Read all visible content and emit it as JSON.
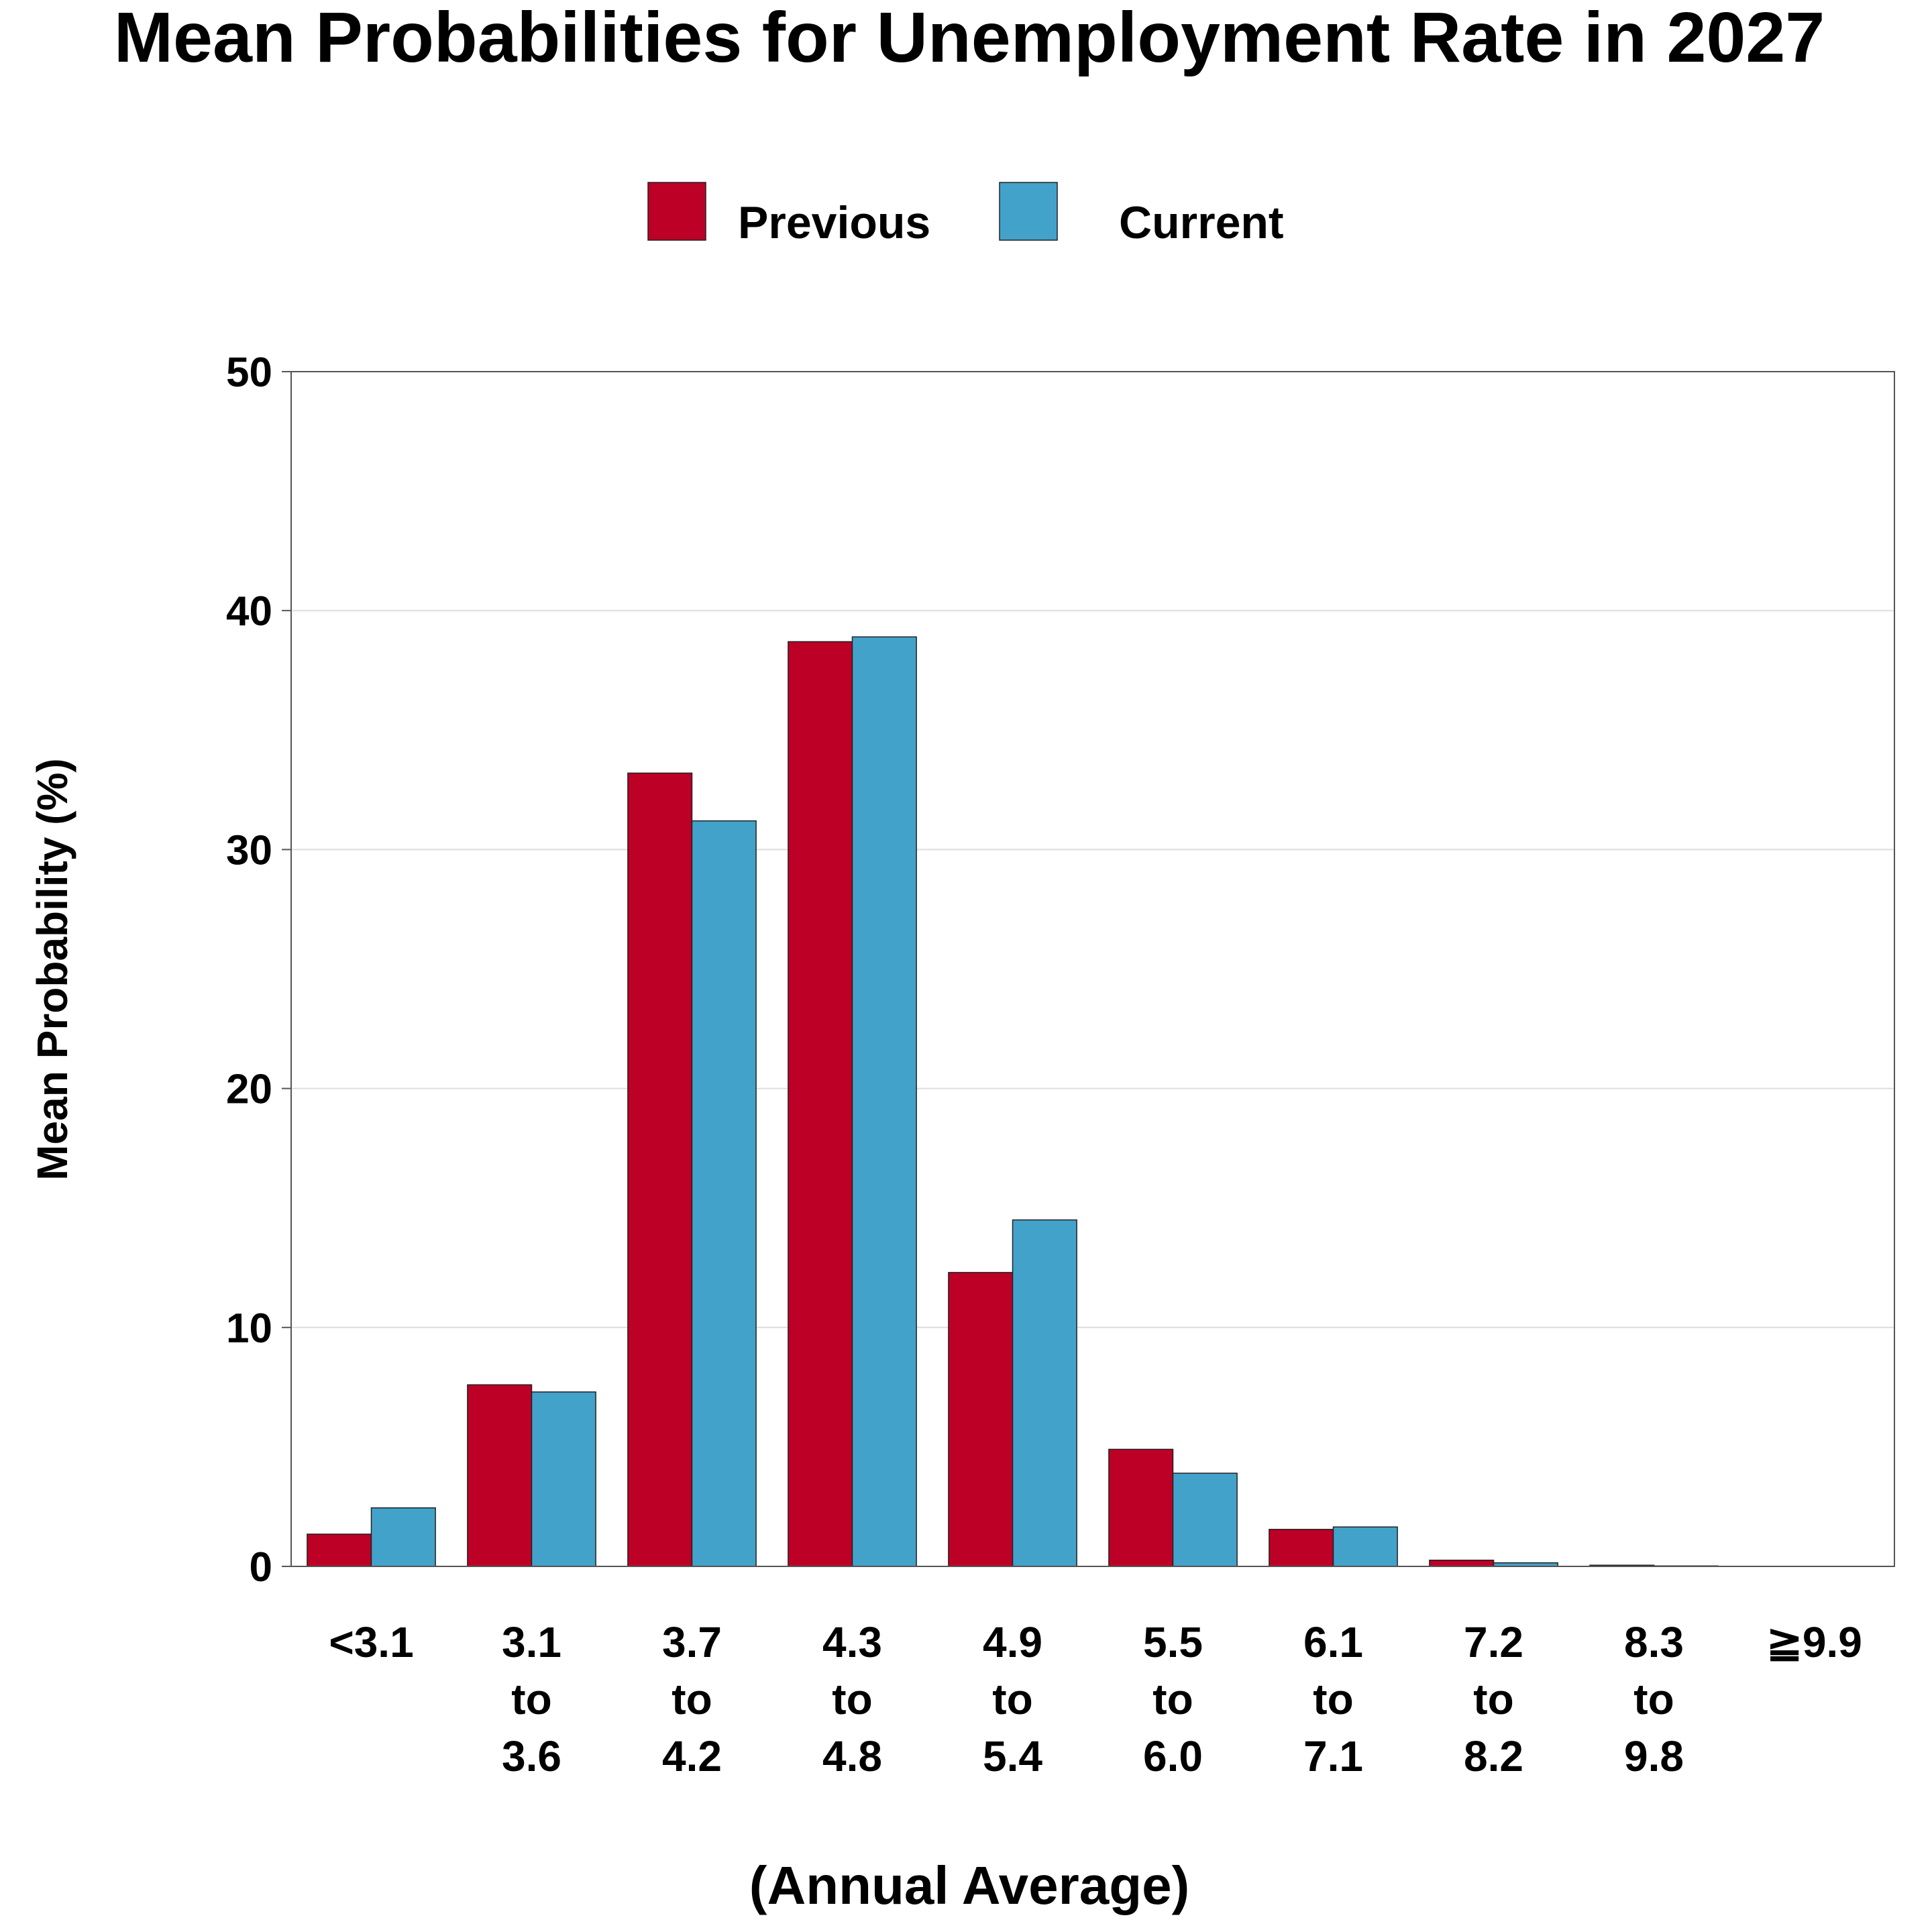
{
  "chart_data": {
    "type": "bar",
    "title": "Mean Probabilities for Unemployment Rate in 2027",
    "xlabel": "(Annual Average)",
    "ylabel": "Mean Probability (%)",
    "ylim": [
      0,
      50
    ],
    "yticks": [
      0,
      10,
      20,
      30,
      40,
      50
    ],
    "grid": true,
    "legend_position": "top-center",
    "categories": [
      [
        "<3.1"
      ],
      [
        "3.1",
        "to",
        "3.6"
      ],
      [
        "3.7",
        "to",
        "4.2"
      ],
      [
        "4.3",
        "to",
        "4.8"
      ],
      [
        "4.9",
        "to",
        "5.4"
      ],
      [
        "5.5",
        "to",
        "6.0"
      ],
      [
        "6.1",
        "to",
        "7.1"
      ],
      [
        "7.2",
        "to",
        "8.2"
      ],
      [
        "8.3",
        "to",
        "9.8"
      ],
      [
        "≧9.9"
      ]
    ],
    "series": [
      {
        "name": "Previous",
        "color": "#BD0026",
        "values": [
          1.35,
          7.6,
          33.2,
          38.7,
          12.3,
          4.9,
          1.55,
          0.26,
          0.05,
          0.0
        ]
      },
      {
        "name": "Current",
        "color": "#43A2CA",
        "values": [
          2.45,
          7.3,
          31.2,
          38.9,
          14.5,
          3.9,
          1.65,
          0.15,
          0.02,
          0.0
        ]
      }
    ]
  }
}
